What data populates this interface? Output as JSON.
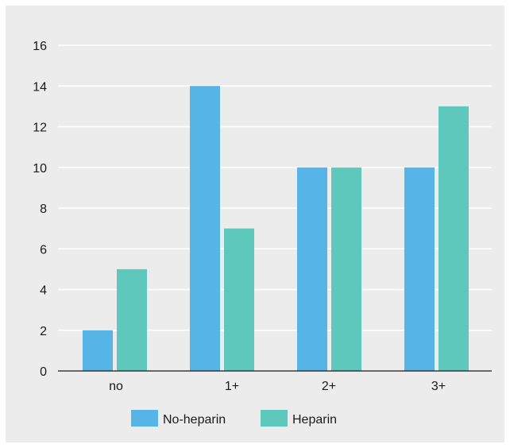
{
  "chart_data": {
    "type": "bar",
    "title": "",
    "xlabel": "",
    "ylabel": "",
    "categories": [
      "no",
      "1+",
      "2+",
      "3+"
    ],
    "series": [
      {
        "name": "No-heparin",
        "values": [
          2,
          14,
          10,
          10
        ],
        "color": "#57b4e6"
      },
      {
        "name": "Heparin",
        "values": [
          5,
          7,
          10,
          13
        ],
        "color": "#5fc8bd"
      }
    ],
    "ylim": [
      0,
      16
    ],
    "yticks": [
      0,
      2,
      4,
      6,
      8,
      10,
      12,
      14,
      16
    ],
    "grid": true,
    "legend_position": "bottom-center",
    "colors": {
      "background": "#ececec",
      "grid": "#ffffff",
      "axis": "#1a1a1a"
    }
  }
}
